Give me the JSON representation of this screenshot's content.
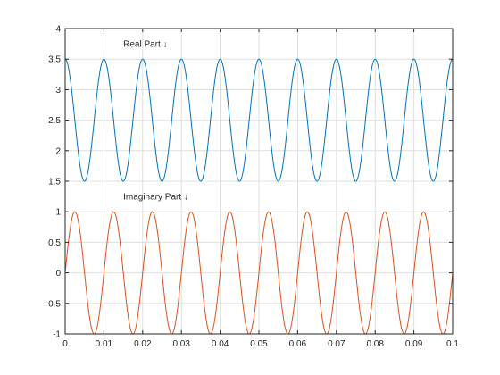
{
  "chart_data": {
    "type": "line",
    "title": "",
    "xlabel": "",
    "ylabel": "",
    "xlim": [
      0,
      0.1
    ],
    "ylim": [
      -1,
      4
    ],
    "grid": true,
    "legend": "none",
    "x_ticks": [
      0,
      0.01,
      0.02,
      0.03,
      0.04,
      0.05,
      0.06,
      0.07,
      0.08,
      0.09,
      0.1
    ],
    "x_tick_labels": [
      "0",
      "0.01",
      "0.02",
      "0.03",
      "0.04",
      "0.05",
      "0.06",
      "0.07",
      "0.08",
      "0.09",
      "0.1"
    ],
    "y_ticks": [
      -1,
      -0.5,
      0,
      0.5,
      1,
      1.5,
      2,
      2.5,
      3,
      3.5,
      4
    ],
    "y_tick_labels": [
      "-1",
      "-0.5",
      "0",
      "0.5",
      "1",
      "1.5",
      "2",
      "2.5",
      "3",
      "3.5",
      "4"
    ],
    "series": [
      {
        "color": "#0072bd",
        "function": "2.5 + cos(2*pi*100*t)",
        "offset": 2.5,
        "amplitude": 1,
        "frequency_hz": 100,
        "phase": "cos",
        "samples": 1001
      },
      {
        "color": "#d95319",
        "function": "sin(2*pi*100*t)",
        "offset": 0,
        "amplitude": 1,
        "frequency_hz": 100,
        "phase": "sin",
        "samples": 1001
      }
    ],
    "annotations": [
      {
        "text": "Real Part ↓",
        "x": 0.015,
        "y": 3.7
      },
      {
        "text": "Imaginary Part ↓",
        "x": 0.015,
        "y": 1.2
      }
    ],
    "colors": {
      "axis": "#262626",
      "grid": "#dfdfdf",
      "background": "#ffffff"
    }
  }
}
